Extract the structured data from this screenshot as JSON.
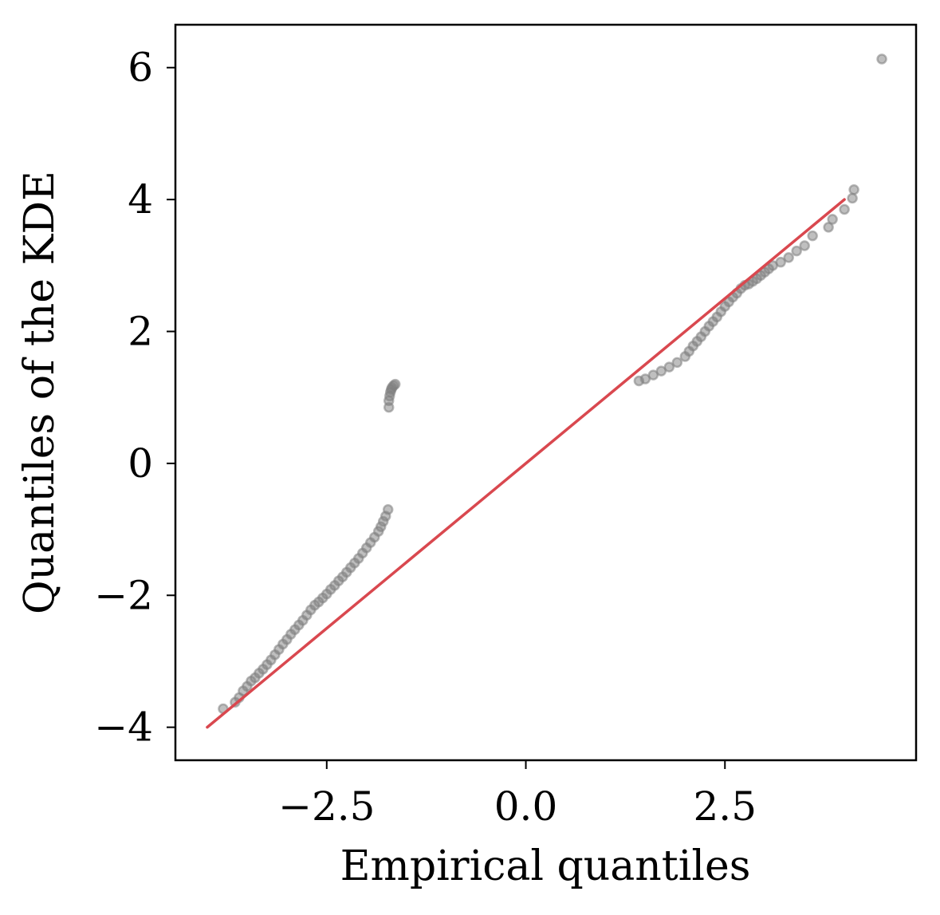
{
  "chart_data": {
    "type": "scatter",
    "title": "",
    "xlabel": "Empirical quantiles",
    "ylabel": "Quantiles of the KDE",
    "xlim": [
      -4.4,
      4.9
    ],
    "ylim": [
      -4.5,
      6.65
    ],
    "grid": false,
    "xticks": [
      {
        "value": -2.5,
        "label": "−2.5"
      },
      {
        "value": 0.0,
        "label": "0.0"
      },
      {
        "value": 2.5,
        "label": "2.5"
      }
    ],
    "yticks": [
      {
        "value": -4,
        "label": "−4"
      },
      {
        "value": -2,
        "label": "−2"
      },
      {
        "value": 0,
        "label": "0"
      },
      {
        "value": 2,
        "label": "2"
      },
      {
        "value": 4,
        "label": "4"
      },
      {
        "value": 6,
        "label": "6"
      }
    ],
    "colors": {
      "points": "#808080",
      "reference_line": "#d9484f",
      "axes": "#000000"
    },
    "reference_line": {
      "x": [
        -4.0,
        4.0
      ],
      "y": [
        -4.0,
        4.0
      ]
    },
    "series": [
      {
        "x": [
          -3.8,
          -3.65,
          -3.6,
          -3.55,
          -3.5,
          -3.45,
          -3.4,
          -3.35,
          -3.3,
          -3.25,
          -3.2,
          -3.15,
          -3.1,
          -3.05,
          -3.0,
          -2.95,
          -2.9,
          -2.85,
          -2.8,
          -2.75,
          -2.7,
          -2.65,
          -2.6,
          -2.55,
          -2.5,
          -2.45,
          -2.4,
          -2.35,
          -2.3,
          -2.25,
          -2.2,
          -2.15,
          -2.1,
          -2.05,
          -2.0,
          -1.95,
          -1.9,
          -1.85,
          -1.82,
          -1.79,
          -1.76,
          -1.73,
          -1.72,
          -1.72,
          -1.71,
          -1.7,
          -1.69,
          -1.68,
          -1.66,
          -1.64,
          1.42,
          1.5,
          1.6,
          1.7,
          1.8,
          1.9,
          2.0,
          2.05,
          2.1,
          2.15,
          2.2,
          2.25,
          2.3,
          2.35,
          2.4,
          2.45,
          2.5,
          2.55,
          2.6,
          2.65,
          2.7,
          2.75,
          2.8,
          2.85,
          2.9,
          2.95,
          3.0,
          3.05,
          3.1,
          3.2,
          3.3,
          3.4,
          3.5,
          3.6,
          3.8,
          3.85,
          4.0,
          4.1,
          4.12,
          4.47
        ],
        "y": [
          -3.72,
          -3.62,
          -3.55,
          -3.45,
          -3.38,
          -3.3,
          -3.25,
          -3.18,
          -3.12,
          -3.05,
          -2.98,
          -2.9,
          -2.82,
          -2.74,
          -2.67,
          -2.59,
          -2.52,
          -2.45,
          -2.38,
          -2.3,
          -2.22,
          -2.15,
          -2.1,
          -2.04,
          -1.98,
          -1.91,
          -1.85,
          -1.78,
          -1.72,
          -1.65,
          -1.58,
          -1.51,
          -1.44,
          -1.36,
          -1.28,
          -1.2,
          -1.12,
          -1.03,
          -0.96,
          -0.88,
          -0.8,
          -0.7,
          0.85,
          0.95,
          1.02,
          1.08,
          1.12,
          1.15,
          1.18,
          1.2,
          1.25,
          1.28,
          1.34,
          1.4,
          1.46,
          1.53,
          1.62,
          1.7,
          1.78,
          1.85,
          1.92,
          2.0,
          2.08,
          2.15,
          2.22,
          2.3,
          2.38,
          2.45,
          2.52,
          2.58,
          2.65,
          2.7,
          2.72,
          2.76,
          2.8,
          2.85,
          2.9,
          2.95,
          3.0,
          3.05,
          3.12,
          3.22,
          3.3,
          3.45,
          3.58,
          3.7,
          3.85,
          4.02,
          4.15,
          6.13
        ]
      }
    ]
  }
}
